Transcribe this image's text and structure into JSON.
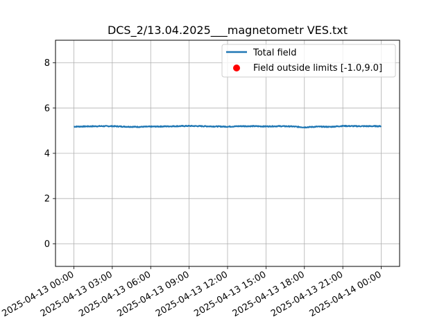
{
  "chart_data": {
    "type": "line",
    "title": "DCS_2/13.04.2025___magnetometr VES.txt",
    "xlabel": "",
    "ylabel": "",
    "x_type": "datetime",
    "xlim": [
      "2025-04-12 22:34",
      "2025-04-14 01:26"
    ],
    "ylim": [
      -1.0,
      9.0
    ],
    "grid": true,
    "legend_position": "top-right",
    "x_ticks": [
      "2025-04-13 00:00",
      "2025-04-13 03:00",
      "2025-04-13 06:00",
      "2025-04-13 09:00",
      "2025-04-13 12:00",
      "2025-04-13 15:00",
      "2025-04-13 18:00",
      "2025-04-13 21:00",
      "2025-04-14 00:00"
    ],
    "y_ticks": [
      0,
      2,
      4,
      6,
      8
    ],
    "series": [
      {
        "name": "Total field",
        "kind": "line",
        "color": "#1f77b4",
        "x": [
          "2025-04-13 00:00",
          "2025-04-13 01:00",
          "2025-04-13 02:00",
          "2025-04-13 03:00",
          "2025-04-13 04:00",
          "2025-04-13 05:00",
          "2025-04-13 06:00",
          "2025-04-13 07:00",
          "2025-04-13 08:00",
          "2025-04-13 09:00",
          "2025-04-13 10:00",
          "2025-04-13 11:00",
          "2025-04-13 12:00",
          "2025-04-13 13:00",
          "2025-04-13 14:00",
          "2025-04-13 15:00",
          "2025-04-13 16:00",
          "2025-04-13 17:00",
          "2025-04-13 18:00",
          "2025-04-13 19:00",
          "2025-04-13 20:00",
          "2025-04-13 21:00",
          "2025-04-13 22:00",
          "2025-04-13 23:00",
          "2025-04-14 00:00"
        ],
        "y": [
          5.18,
          5.19,
          5.2,
          5.2,
          5.18,
          5.17,
          5.18,
          5.19,
          5.2,
          5.21,
          5.2,
          5.19,
          5.18,
          5.2,
          5.2,
          5.19,
          5.2,
          5.19,
          5.15,
          5.18,
          5.17,
          5.21,
          5.2,
          5.2,
          5.2
        ]
      },
      {
        "name": "Field outside limits [-1.0,9.0]",
        "kind": "scatter",
        "color": "#ff0000",
        "x": [],
        "y": []
      }
    ]
  }
}
